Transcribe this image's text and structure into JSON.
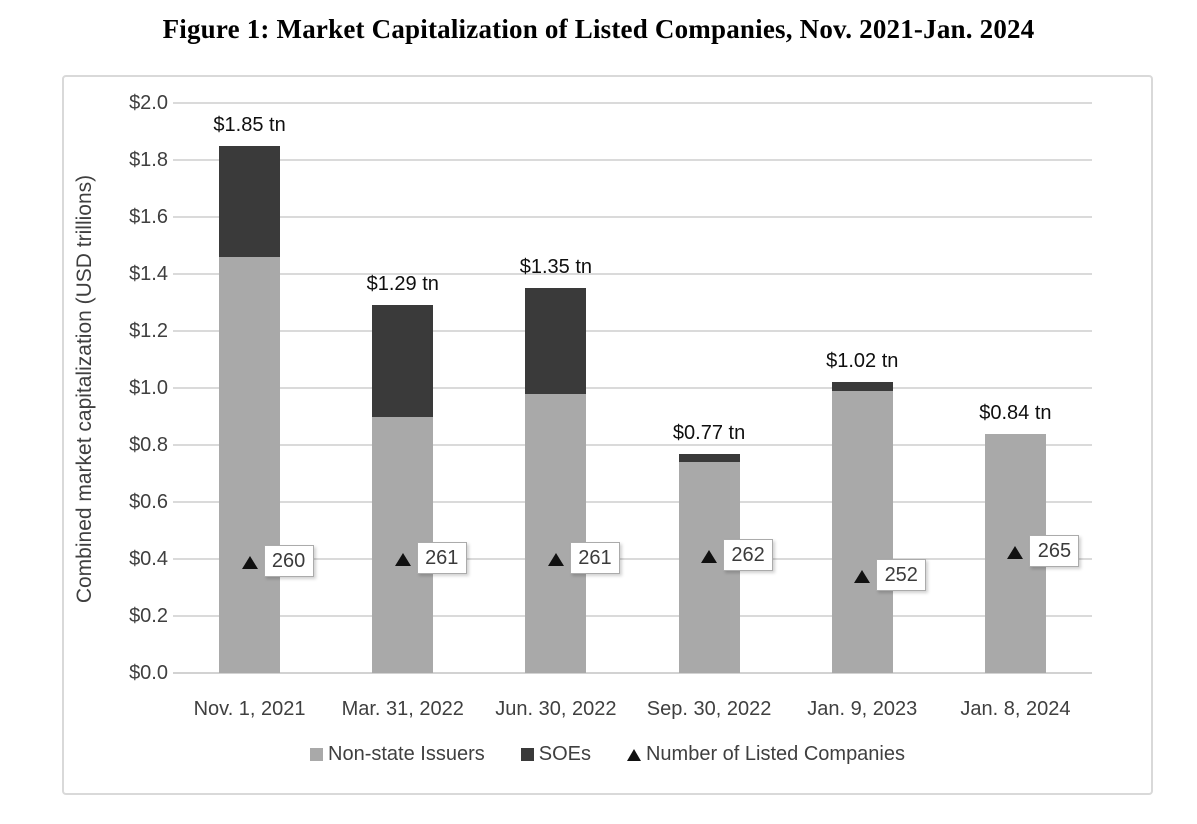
{
  "title": "Figure 1: Market Capitalization of Listed Companies, Nov. 2021-Jan. 2024",
  "chart_data": {
    "type": "bar",
    "stacked": true,
    "title": "Figure 1: Market Capitalization of Listed Companies, Nov. 2021-Jan. 2024",
    "categories": [
      "Nov. 1, 2021",
      "Mar. 31, 2022",
      "Jun. 30, 2022",
      "Sep. 30, 2022",
      "Jan. 9, 2023",
      "Jan. 8, 2024"
    ],
    "series": [
      {
        "name": "Non-state Issuers",
        "color": "#a9a9a9",
        "values": [
          1.46,
          0.9,
          0.98,
          0.74,
          0.99,
          0.84
        ]
      },
      {
        "name": "SOEs",
        "color": "#3a3a3a",
        "values": [
          0.39,
          0.39,
          0.37,
          0.03,
          0.03,
          0.0
        ]
      }
    ],
    "totals": [
      1.85,
      1.29,
      1.35,
      0.77,
      1.02,
      0.84
    ],
    "total_labels": [
      "$1.85 tn",
      "$1.29 tn",
      "$1.35 tn",
      "$0.77 tn",
      "$1.02 tn",
      "$0.84 tn"
    ],
    "markers": {
      "name": "Number of Listed Companies",
      "shape": "triangle",
      "color": "#111111",
      "counts": [
        "260",
        "261",
        "261",
        "262",
        "252",
        "265"
      ],
      "y_values": [
        0.39,
        0.4,
        0.4,
        0.41,
        0.34,
        0.425
      ]
    },
    "xlabel": "",
    "ylabel": "Combined market capitalization (USD trillions)",
    "ylim": [
      0,
      2.0
    ],
    "yticks": [
      "$0.0",
      "$0.2",
      "$0.4",
      "$0.6",
      "$0.8",
      "$1.0",
      "$1.2",
      "$1.4",
      "$1.6",
      "$1.8",
      "$2.0"
    ],
    "grid": true,
    "legend_position": "bottom"
  },
  "colors": {
    "background": "#ffffff",
    "frame_border": "#d9d9d9",
    "grid": "#dadada",
    "axis_line": "#d2d2d2",
    "tick_text": "#3f3f3f",
    "data_label_text": "#0f0f0f",
    "marker_box_border": "#ababab",
    "marker_box_fill": "#ffffff"
  }
}
